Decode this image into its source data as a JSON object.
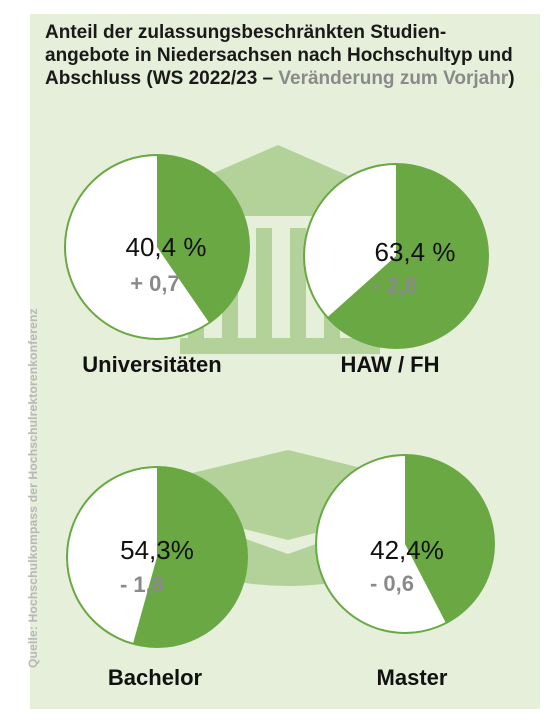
{
  "title": {
    "main": "Anteil der zulassungsbeschränkten Studien-angebote in Niedersachsen nach Hochschultyp und Abschluss (WS 2022/23 –",
    "accent": "Veränderung zum Vorjahr",
    "close": ")"
  },
  "source": "Quelle: Hochschulkompass der Hochschulrektorenkonferenz",
  "colors": {
    "fill": "#6aa844",
    "circle": "#ffffff",
    "stroke": "#6aa844",
    "background": "#e6efd9",
    "icon": "#b2d29a",
    "change": "#8a8a8a"
  },
  "icons": [
    "university-building-icon",
    "graduation-cap-icon"
  ],
  "chart_data": [
    {
      "type": "pie",
      "label": "Universitäten",
      "value_label": "40,4 %",
      "value": 40.4,
      "change_label": "+ 0,7",
      "change": 0.7
    },
    {
      "type": "pie",
      "label": "HAW / FH",
      "value_label": "63,4 %",
      "value": 63.4,
      "change_label": "- 2,8",
      "change": -2.8
    },
    {
      "type": "pie",
      "label": "Bachelor",
      "value_label": "54,3%",
      "value": 54.3,
      "change_label": "- 1,8",
      "change": -1.8
    },
    {
      "type": "pie",
      "label": "Master",
      "value_label": "42,4%",
      "value": 42.4,
      "change_label": "- 0,6",
      "change": -0.6
    }
  ]
}
